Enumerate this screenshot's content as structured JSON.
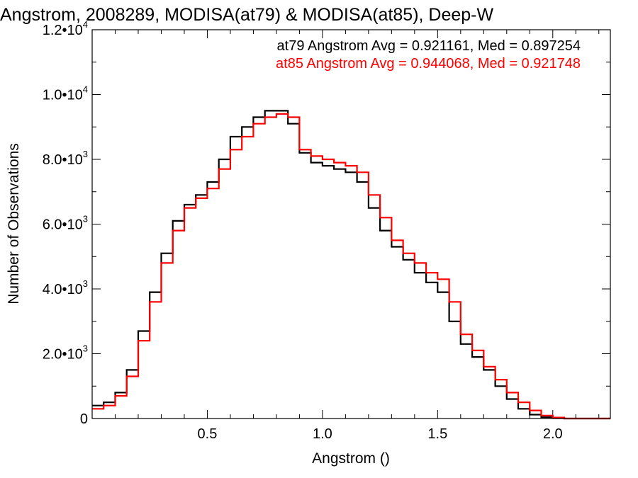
{
  "chart_data": {
    "type": "line",
    "step": true,
    "title": "Angstrom, 2008289, MODISA(at79) & MODISA(at85), Deep-W",
    "xlabel": "Angstrom ()",
    "ylabel": "Number of Observations",
    "xlim": [
      0.0,
      2.25
    ],
    "ylim": [
      0,
      12000
    ],
    "grid": false,
    "x_ticks": [
      {
        "value": 0.5,
        "label": "0.5"
      },
      {
        "value": 1.0,
        "label": "1.0"
      },
      {
        "value": 1.5,
        "label": "1.5"
      },
      {
        "value": 2.0,
        "label": "2.0"
      }
    ],
    "y_ticks": [
      {
        "value": 0,
        "mant": "0",
        "exp": ""
      },
      {
        "value": 2000,
        "mant": "2.0•10",
        "exp": "3"
      },
      {
        "value": 4000,
        "mant": "4.0•10",
        "exp": "3"
      },
      {
        "value": 6000,
        "mant": "6.0•10",
        "exp": "3"
      },
      {
        "value": 8000,
        "mant": "8.0•10",
        "exp": "3"
      },
      {
        "value": 10000,
        "mant": "1.0•10",
        "exp": "4"
      },
      {
        "value": 12000,
        "mant": "1.2•10",
        "exp": "4"
      }
    ],
    "annotations": [
      {
        "text": "at79 Angstrom Avg = 0.921161, Med = 0.897254",
        "color": "#000000"
      },
      {
        "text": "at85 Angstrom Avg = 0.944068, Med = 0.921748",
        "color": "#ff0000"
      }
    ],
    "series": [
      {
        "color": "#000000",
        "x": [
          0.0,
          0.05,
          0.1,
          0.15,
          0.2,
          0.25,
          0.3,
          0.35,
          0.4,
          0.45,
          0.5,
          0.55,
          0.6,
          0.65,
          0.7,
          0.75,
          0.8,
          0.85,
          0.9,
          0.95,
          1.0,
          1.05,
          1.1,
          1.15,
          1.2,
          1.25,
          1.3,
          1.35,
          1.4,
          1.45,
          1.5,
          1.55,
          1.6,
          1.65,
          1.7,
          1.75,
          1.8,
          1.85,
          1.9,
          1.95,
          2.0,
          2.05,
          2.1,
          2.15,
          2.2,
          2.25
        ],
        "y": [
          400,
          500,
          800,
          1500,
          2700,
          3900,
          5100,
          6100,
          6600,
          6900,
          7300,
          8000,
          8700,
          9000,
          9300,
          9500,
          9500,
          9100,
          8200,
          7900,
          7800,
          7700,
          7600,
          7300,
          6500,
          5800,
          5300,
          4900,
          4500,
          4200,
          3900,
          3000,
          2300,
          1900,
          1500,
          1000,
          600,
          300,
          120,
          40,
          10,
          0,
          0,
          0,
          0,
          0
        ]
      },
      {
        "color": "#ff0000",
        "x": [
          0.0,
          0.05,
          0.1,
          0.15,
          0.2,
          0.25,
          0.3,
          0.35,
          0.4,
          0.45,
          0.5,
          0.55,
          0.6,
          0.65,
          0.7,
          0.75,
          0.8,
          0.85,
          0.9,
          0.95,
          1.0,
          1.05,
          1.1,
          1.15,
          1.2,
          1.25,
          1.3,
          1.35,
          1.4,
          1.45,
          1.5,
          1.55,
          1.6,
          1.65,
          1.7,
          1.75,
          1.8,
          1.85,
          1.9,
          1.95,
          2.0,
          2.05,
          2.1,
          2.15,
          2.2,
          2.25
        ],
        "y": [
          300,
          400,
          700,
          1300,
          2400,
          3600,
          4800,
          5800,
          6500,
          6800,
          7100,
          7700,
          8300,
          8700,
          9100,
          9300,
          9400,
          9300,
          8300,
          8100,
          8000,
          7900,
          7800,
          7600,
          6900,
          6200,
          5500,
          5100,
          4800,
          4500,
          4300,
          3600,
          2600,
          2100,
          1600,
          1200,
          800,
          500,
          250,
          90,
          30,
          0,
          0,
          0,
          0,
          0
        ]
      }
    ]
  }
}
